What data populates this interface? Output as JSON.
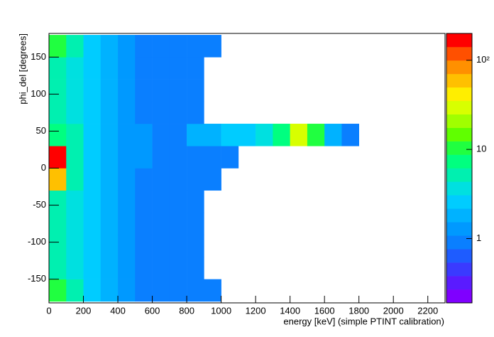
{
  "chart_data": {
    "type": "heatmap",
    "xlabel": "energy [keV] (simple PTINT calibration)",
    "ylabel": "phi_del [degrees]",
    "xlim": [
      0,
      2300
    ],
    "ylim": [
      -182,
      182
    ],
    "xticks": [
      0,
      200,
      400,
      600,
      800,
      1000,
      1200,
      1400,
      1600,
      1800,
      2000,
      2200
    ],
    "yticks": [
      -150,
      -100,
      -50,
      0,
      50,
      100,
      150
    ],
    "xbins": [
      0,
      100,
      200,
      300,
      400,
      500,
      600,
      700,
      800,
      900,
      1000,
      1100,
      1200,
      1300,
      1400,
      1500,
      1600,
      1700,
      1800,
      1900,
      2000,
      2100,
      2200,
      2300
    ],
    "ybins": [
      -180,
      -150,
      -120,
      -90,
      -60,
      -30,
      0,
      30,
      60,
      90,
      120,
      150,
      180
    ],
    "z": [
      [
        12,
        5,
        3,
        2,
        1.5,
        1,
        1,
        1,
        1,
        1,
        0,
        0,
        0,
        0,
        0,
        0,
        0,
        0,
        0,
        0,
        0,
        0,
        0
      ],
      [
        6,
        4,
        3,
        2,
        1.5,
        1,
        1,
        1,
        1,
        0,
        0,
        0,
        0,
        0,
        0,
        0,
        0,
        0,
        0,
        0,
        0,
        0,
        0
      ],
      [
        6,
        4,
        3,
        2,
        1.5,
        1,
        1,
        1,
        1,
        0,
        0,
        0,
        0,
        0,
        0,
        0,
        0,
        0,
        0,
        0,
        0,
        0,
        0
      ],
      [
        6,
        4,
        3,
        2,
        1.5,
        1,
        1,
        1,
        1,
        0,
        0,
        0,
        0,
        0,
        0,
        0,
        0,
        0,
        0,
        0,
        0,
        0,
        0
      ],
      [
        6,
        4,
        3,
        2,
        1.5,
        1,
        1,
        1,
        1,
        0,
        0,
        0,
        0,
        0,
        0,
        0,
        0,
        0,
        0,
        0,
        0,
        0,
        0
      ],
      [
        60,
        5,
        3,
        2,
        1.5,
        1,
        1,
        1,
        1,
        1,
        0,
        0,
        0,
        0,
        0,
        0,
        0,
        0,
        0,
        0,
        0,
        0,
        0
      ],
      [
        150,
        5,
        3,
        2,
        1.5,
        1.2,
        1,
        1,
        1,
        1,
        1,
        0,
        0,
        0,
        0,
        0,
        0,
        0,
        0,
        0,
        0,
        0,
        0
      ],
      [
        8,
        5,
        3,
        2,
        1.5,
        1.2,
        1,
        1,
        2,
        2,
        3,
        3,
        4,
        8,
        30,
        10,
        2,
        1,
        0,
        0,
        0,
        0,
        0
      ],
      [
        6,
        4,
        3,
        2,
        1.5,
        1,
        1,
        1,
        1,
        0,
        0,
        0,
        0,
        0,
        0,
        0,
        0,
        0,
        0,
        0,
        0,
        0,
        0
      ],
      [
        6,
        4,
        3,
        2,
        1.5,
        1,
        1,
        1,
        1,
        0,
        0,
        0,
        0,
        0,
        0,
        0,
        0,
        0,
        0,
        0,
        0,
        0,
        0
      ],
      [
        6,
        4,
        3,
        2,
        1.5,
        1,
        1,
        1,
        1,
        0,
        0,
        0,
        0,
        0,
        0,
        0,
        0,
        0,
        0,
        0,
        0,
        0,
        0
      ],
      [
        12,
        5,
        3,
        2,
        1.5,
        1,
        1,
        1,
        1,
        1,
        0,
        0,
        0,
        0,
        0,
        0,
        0,
        0,
        0,
        0,
        0,
        0,
        0
      ]
    ],
    "zlim": [
      0.19,
      200
    ],
    "zlog": true,
    "zticks": [
      1,
      10,
      {
        "value": 100,
        "label": "10²"
      }
    ],
    "colors": [
      "#7f00ff",
      "#5a1bff",
      "#3a3aff",
      "#1e5cff",
      "#0a7fff",
      "#0099ff",
      "#00b2ff",
      "#00ccff",
      "#00e0e0",
      "#00f0b0",
      "#00ff80",
      "#20ff40",
      "#60ff00",
      "#a0ff00",
      "#d8ff00",
      "#ffee00",
      "#ffc000",
      "#ff9000",
      "#ff5000",
      "#ff0000"
    ]
  }
}
